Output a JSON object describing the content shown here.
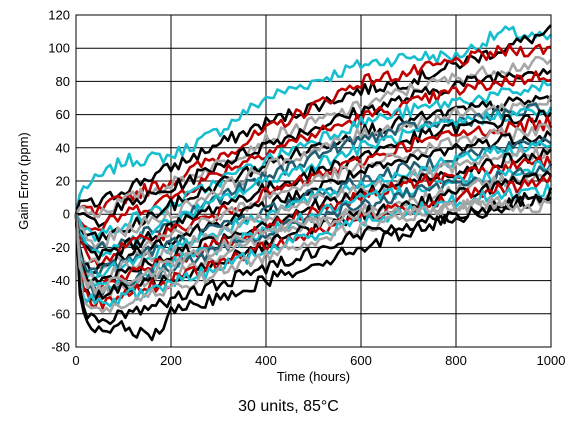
{
  "chart_data": {
    "type": "line",
    "title": "",
    "caption": "30 units, 85°C",
    "xlabel": "Time (hours)",
    "ylabel": "Gain Error (ppm)",
    "xlim": [
      0,
      1000
    ],
    "ylim": [
      -80,
      120
    ],
    "xticks": [
      0,
      200,
      400,
      600,
      800,
      1000
    ],
    "yticks": [
      -80,
      -60,
      -40,
      -20,
      0,
      20,
      40,
      60,
      80,
      100,
      120
    ],
    "grid": true,
    "legend": "none",
    "colors": {
      "black": "#000000",
      "red": "#c00000",
      "cyan": "#17becf",
      "gray": "#a6a6a6",
      "teal": "#215e73"
    },
    "series": [
      {
        "color": "cyan",
        "x": [
          0,
          10,
          40,
          100,
          200,
          300,
          400,
          500,
          600,
          700,
          800,
          900,
          1000
        ],
        "y": [
          0,
          15,
          20,
          32,
          35,
          50,
          70,
          80,
          90,
          95,
          95,
          110,
          105
        ]
      },
      {
        "color": "black",
        "x": [
          0,
          10,
          40,
          100,
          200,
          300,
          400,
          500,
          600,
          700,
          800,
          900,
          1000
        ],
        "y": [
          0,
          10,
          5,
          15,
          28,
          42,
          55,
          65,
          75,
          80,
          90,
          100,
          110
        ]
      },
      {
        "color": "red",
        "x": [
          0,
          10,
          40,
          100,
          200,
          300,
          400,
          500,
          600,
          700,
          800,
          900,
          1000
        ],
        "y": [
          0,
          5,
          0,
          10,
          20,
          35,
          50,
          65,
          80,
          85,
          92,
          98,
          100
        ]
      },
      {
        "color": "gray",
        "x": [
          0,
          10,
          40,
          100,
          200,
          300,
          400,
          500,
          600,
          700,
          800,
          900,
          1000
        ],
        "y": [
          0,
          5,
          0,
          8,
          18,
          30,
          45,
          55,
          65,
          75,
          82,
          88,
          92
        ]
      },
      {
        "color": "black",
        "x": [
          0,
          10,
          40,
          100,
          200,
          300,
          400,
          500,
          600,
          700,
          800,
          900,
          1000
        ],
        "y": [
          0,
          0,
          -5,
          5,
          15,
          30,
          42,
          52,
          62,
          70,
          78,
          84,
          88
        ]
      },
      {
        "color": "red",
        "x": [
          0,
          10,
          40,
          100,
          200,
          300,
          400,
          500,
          600,
          700,
          800,
          900,
          1000
        ],
        "y": [
          0,
          -5,
          -10,
          0,
          10,
          25,
          38,
          48,
          58,
          66,
          74,
          80,
          84
        ]
      },
      {
        "color": "cyan",
        "x": [
          0,
          10,
          40,
          100,
          200,
          300,
          400,
          500,
          600,
          700,
          800,
          900,
          1000
        ],
        "y": [
          0,
          -5,
          -15,
          -5,
          5,
          20,
          32,
          45,
          55,
          62,
          68,
          72,
          78
        ]
      },
      {
        "color": "black",
        "x": [
          0,
          10,
          40,
          100,
          200,
          300,
          400,
          500,
          600,
          700,
          800,
          900,
          1000
        ],
        "y": [
          0,
          -10,
          -15,
          -10,
          5,
          18,
          30,
          40,
          50,
          56,
          62,
          66,
          70
        ]
      },
      {
        "color": "gray",
        "x": [
          0,
          10,
          40,
          100,
          200,
          300,
          400,
          500,
          600,
          700,
          800,
          900,
          1000
        ],
        "y": [
          0,
          -10,
          -20,
          -10,
          0,
          15,
          28,
          38,
          48,
          54,
          60,
          64,
          68
        ]
      },
      {
        "color": "teal",
        "x": [
          0,
          10,
          40,
          100,
          200,
          300,
          400,
          500,
          600,
          700,
          800,
          900,
          1000
        ],
        "y": [
          0,
          -15,
          -22,
          -15,
          -5,
          10,
          22,
          35,
          45,
          52,
          56,
          60,
          64
        ]
      },
      {
        "color": "cyan",
        "x": [
          0,
          10,
          40,
          100,
          200,
          300,
          400,
          500,
          600,
          700,
          800,
          900,
          1000
        ],
        "y": [
          0,
          -15,
          -25,
          -18,
          -5,
          8,
          20,
          30,
          40,
          48,
          55,
          60,
          62
        ]
      },
      {
        "color": "black",
        "x": [
          0,
          10,
          40,
          100,
          200,
          300,
          400,
          500,
          600,
          700,
          800,
          900,
          1000
        ],
        "y": [
          0,
          -20,
          -25,
          -20,
          -8,
          5,
          15,
          25,
          35,
          45,
          52,
          56,
          60
        ]
      },
      {
        "color": "red",
        "x": [
          0,
          10,
          40,
          100,
          200,
          300,
          400,
          500,
          600,
          700,
          800,
          900,
          1000
        ],
        "y": [
          0,
          -20,
          -30,
          -20,
          -10,
          0,
          12,
          22,
          32,
          42,
          48,
          52,
          55
        ]
      },
      {
        "color": "gray",
        "x": [
          0,
          10,
          40,
          100,
          200,
          300,
          400,
          500,
          600,
          700,
          800,
          900,
          1000
        ],
        "y": [
          0,
          -25,
          -30,
          -25,
          -12,
          -2,
          10,
          20,
          28,
          36,
          44,
          48,
          52
        ]
      },
      {
        "color": "black",
        "x": [
          0,
          10,
          40,
          100,
          200,
          300,
          400,
          500,
          600,
          700,
          800,
          900,
          1000
        ],
        "y": [
          0,
          -25,
          -35,
          -25,
          -15,
          -5,
          5,
          15,
          25,
          32,
          40,
          45,
          48
        ]
      },
      {
        "color": "teal",
        "x": [
          0,
          10,
          40,
          100,
          200,
          300,
          400,
          500,
          600,
          700,
          800,
          900,
          1000
        ],
        "y": [
          0,
          -30,
          -35,
          -28,
          -18,
          -8,
          2,
          12,
          20,
          28,
          35,
          40,
          45
        ]
      },
      {
        "color": "cyan",
        "x": [
          0,
          10,
          40,
          100,
          200,
          300,
          400,
          500,
          600,
          700,
          800,
          900,
          1000
        ],
        "y": [
          0,
          -30,
          -40,
          -30,
          -20,
          -10,
          0,
          10,
          18,
          25,
          32,
          38,
          42
        ]
      },
      {
        "color": "gray",
        "x": [
          0,
          10,
          40,
          100,
          200,
          300,
          400,
          500,
          600,
          700,
          800,
          900,
          1000
        ],
        "y": [
          0,
          -30,
          -40,
          -32,
          -22,
          -12,
          -2,
          8,
          15,
          22,
          28,
          34,
          38
        ]
      },
      {
        "color": "black",
        "x": [
          0,
          10,
          40,
          100,
          200,
          300,
          400,
          500,
          600,
          700,
          800,
          900,
          1000
        ],
        "y": [
          0,
          -35,
          -42,
          -35,
          -25,
          -15,
          -5,
          5,
          12,
          20,
          26,
          32,
          36
        ]
      },
      {
        "color": "red",
        "x": [
          0,
          10,
          40,
          100,
          200,
          300,
          400,
          500,
          600,
          700,
          800,
          900,
          1000
        ],
        "y": [
          0,
          -35,
          -45,
          -38,
          -28,
          -18,
          -8,
          2,
          10,
          18,
          24,
          28,
          32
        ]
      },
      {
        "color": "cyan",
        "x": [
          0,
          10,
          40,
          100,
          200,
          300,
          400,
          500,
          600,
          700,
          800,
          900,
          1000
        ],
        "y": [
          0,
          -35,
          -45,
          -40,
          -30,
          -20,
          -10,
          0,
          8,
          15,
          20,
          25,
          30
        ]
      },
      {
        "color": "teal",
        "x": [
          0,
          10,
          40,
          100,
          200,
          300,
          400,
          500,
          600,
          700,
          800,
          900,
          1000
        ],
        "y": [
          0,
          -40,
          -48,
          -42,
          -32,
          -22,
          -12,
          -2,
          5,
          12,
          18,
          22,
          28
        ]
      },
      {
        "color": "gray",
        "x": [
          0,
          10,
          40,
          100,
          200,
          300,
          400,
          500,
          600,
          700,
          800,
          900,
          1000
        ],
        "y": [
          0,
          -40,
          -48,
          -45,
          -35,
          -25,
          -15,
          -5,
          2,
          8,
          15,
          20,
          25
        ]
      },
      {
        "color": "black",
        "x": [
          0,
          10,
          40,
          100,
          200,
          300,
          400,
          500,
          600,
          700,
          800,
          900,
          1000
        ],
        "y": [
          0,
          -45,
          -50,
          -45,
          -38,
          -28,
          -18,
          -8,
          0,
          6,
          12,
          18,
          22
        ]
      },
      {
        "color": "red",
        "x": [
          0,
          10,
          40,
          100,
          200,
          300,
          400,
          500,
          600,
          700,
          800,
          900,
          1000
        ],
        "y": [
          0,
          -45,
          -55,
          -48,
          -40,
          -30,
          -20,
          -10,
          -2,
          4,
          10,
          15,
          20
        ]
      },
      {
        "color": "cyan",
        "x": [
          0,
          10,
          40,
          100,
          200,
          300,
          400,
          500,
          600,
          700,
          800,
          900,
          1000
        ],
        "y": [
          0,
          -45,
          -55,
          -50,
          -42,
          -32,
          -22,
          -12,
          -4,
          2,
          8,
          12,
          15
        ]
      },
      {
        "color": "gray",
        "x": [
          0,
          10,
          40,
          100,
          200,
          300,
          400,
          500,
          600,
          700,
          800,
          900,
          1000
        ],
        "y": [
          0,
          -50,
          -58,
          -55,
          -45,
          -35,
          -25,
          -15,
          -8,
          -2,
          4,
          8,
          10
        ]
      },
      {
        "color": "black",
        "x": [
          0,
          10,
          40,
          100,
          200,
          300,
          400,
          500,
          600,
          700,
          800,
          900,
          1000
        ],
        "y": [
          0,
          -55,
          -65,
          -60,
          -52,
          -42,
          -32,
          -22,
          -12,
          -6,
          0,
          6,
          12
        ]
      },
      {
        "color": "black",
        "x": [
          0,
          10,
          40,
          100,
          160,
          200,
          300,
          400,
          500,
          600,
          700,
          800,
          900,
          1000
        ],
        "y": [
          0,
          -60,
          -70,
          -68,
          -75,
          -60,
          -50,
          -40,
          -30,
          -20,
          -10,
          -2,
          5,
          10
        ]
      },
      {
        "color": "gray",
        "x": [
          0,
          10,
          40,
          100,
          200,
          300,
          400,
          500,
          600,
          700,
          800,
          900,
          1000
        ],
        "y": [
          0,
          -40,
          -45,
          -40,
          -30,
          -20,
          -10,
          -5,
          0,
          2,
          5,
          5,
          5
        ]
      }
    ]
  }
}
